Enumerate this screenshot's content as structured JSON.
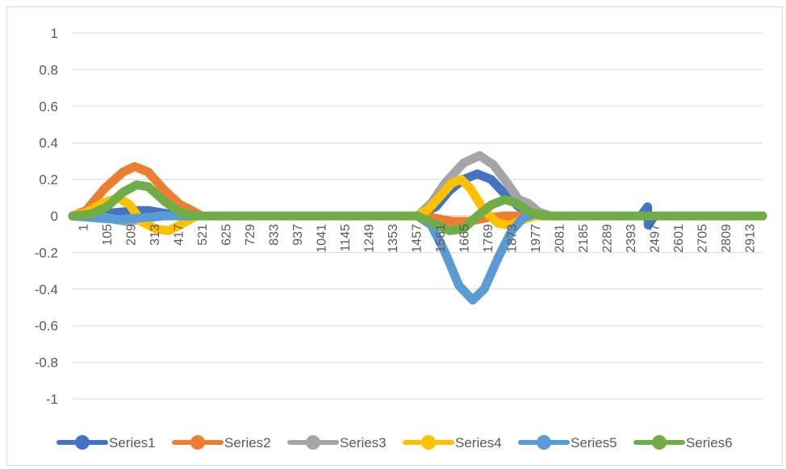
{
  "chart_data": {
    "type": "line",
    "title": "",
    "xlabel": "",
    "ylabel": "",
    "x_range": [
      1,
      3000
    ],
    "ylim": [
      -1,
      1
    ],
    "y_ticks": [
      1,
      0.8,
      0.6,
      0.4,
      0.2,
      0,
      -0.2,
      -0.4,
      -0.6,
      -0.8,
      -1
    ],
    "y_tick_labels": [
      "1",
      "0.8",
      "0.6",
      "0.4",
      "0.2",
      "0",
      "-0.2",
      "-0.4",
      "-0.6",
      "-0.8",
      "-1"
    ],
    "x_tick_labels": [
      "1",
      "105",
      "209",
      "313",
      "417",
      "521",
      "625",
      "729",
      "833",
      "937",
      "1041",
      "1145",
      "1249",
      "1353",
      "1457",
      "1561",
      "1665",
      "1769",
      "1873",
      "1977",
      "2081",
      "2185",
      "2289",
      "2393",
      "2497",
      "2601",
      "2705",
      "2809",
      "2913"
    ],
    "grid": "horizontal",
    "legend_position": "bottom",
    "series": [
      {
        "name": "Series1",
        "color": "#4472C4",
        "points": [
          [
            1,
            0
          ],
          [
            100,
            0.01
          ],
          [
            200,
            0.02
          ],
          [
            280,
            0.03
          ],
          [
            330,
            0.03
          ],
          [
            420,
            0.01
          ],
          [
            500,
            0.0
          ],
          [
            1500,
            0.0
          ],
          [
            1580,
            0.05
          ],
          [
            1640,
            0.14
          ],
          [
            1700,
            0.2
          ],
          [
            1760,
            0.23
          ],
          [
            1820,
            0.2
          ],
          [
            1880,
            0.12
          ],
          [
            1940,
            0.05
          ],
          [
            2000,
            0.02
          ],
          [
            2080,
            0.0
          ],
          [
            2470,
            0.0
          ],
          [
            2500,
            0.05
          ],
          [
            2503,
            -0.05
          ],
          [
            2530,
            0.0
          ],
          [
            3000,
            0.0
          ]
        ]
      },
      {
        "name": "Series2",
        "color": "#ED7D31",
        "points": [
          [
            1,
            0
          ],
          [
            60,
            0.03
          ],
          [
            140,
            0.15
          ],
          [
            220,
            0.24
          ],
          [
            270,
            0.27
          ],
          [
            330,
            0.24
          ],
          [
            400,
            0.14
          ],
          [
            470,
            0.06
          ],
          [
            520,
            0.03
          ],
          [
            560,
            0.0
          ],
          [
            1500,
            0.0
          ],
          [
            1570,
            -0.01
          ],
          [
            1650,
            -0.03
          ],
          [
            1720,
            -0.03
          ],
          [
            1800,
            -0.01
          ],
          [
            1880,
            0.0
          ],
          [
            3000,
            0.0
          ]
        ]
      },
      {
        "name": "Series3",
        "color": "#A5A5A5",
        "points": [
          [
            1,
            0
          ],
          [
            150,
            -0.01
          ],
          [
            230,
            -0.03
          ],
          [
            300,
            -0.02
          ],
          [
            380,
            0.0
          ],
          [
            1500,
            0.0
          ],
          [
            1560,
            0.07
          ],
          [
            1620,
            0.18
          ],
          [
            1700,
            0.29
          ],
          [
            1770,
            0.33
          ],
          [
            1830,
            0.28
          ],
          [
            1890,
            0.18
          ],
          [
            1940,
            0.09
          ],
          [
            1980,
            0.07
          ],
          [
            2030,
            0.02
          ],
          [
            2080,
            0.0
          ],
          [
            3000,
            0.0
          ]
        ]
      },
      {
        "name": "Series4",
        "color": "#FFC000",
        "points": [
          [
            1,
            0
          ],
          [
            60,
            0.02
          ],
          [
            130,
            0.07
          ],
          [
            200,
            0.1
          ],
          [
            250,
            0.06
          ],
          [
            300,
            -0.03
          ],
          [
            360,
            -0.07
          ],
          [
            420,
            -0.08
          ],
          [
            480,
            -0.04
          ],
          [
            540,
            0.0
          ],
          [
            1500,
            0.0
          ],
          [
            1550,
            0.04
          ],
          [
            1600,
            0.11
          ],
          [
            1650,
            0.18
          ],
          [
            1690,
            0.2
          ],
          [
            1730,
            0.15
          ],
          [
            1790,
            0.03
          ],
          [
            1850,
            -0.04
          ],
          [
            1900,
            -0.05
          ],
          [
            1960,
            -0.02
          ],
          [
            2010,
            0.0
          ],
          [
            3000,
            0.0
          ]
        ]
      },
      {
        "name": "Series5",
        "color": "#5B9BD5",
        "points": [
          [
            1,
            0
          ],
          [
            100,
            -0.01
          ],
          [
            200,
            -0.02
          ],
          [
            300,
            -0.01
          ],
          [
            400,
            0.0
          ],
          [
            1500,
            0.0
          ],
          [
            1560,
            -0.05
          ],
          [
            1620,
            -0.2
          ],
          [
            1680,
            -0.38
          ],
          [
            1740,
            -0.46
          ],
          [
            1790,
            -0.4
          ],
          [
            1850,
            -0.23
          ],
          [
            1910,
            -0.08
          ],
          [
            1960,
            -0.01
          ],
          [
            2010,
            0.01
          ],
          [
            2080,
            0.0
          ],
          [
            3000,
            0.0
          ]
        ]
      },
      {
        "name": "Series6",
        "color": "#70AD47",
        "points": [
          [
            1,
            0
          ],
          [
            80,
            0.01
          ],
          [
            150,
            0.05
          ],
          [
            220,
            0.13
          ],
          [
            280,
            0.17
          ],
          [
            330,
            0.16
          ],
          [
            400,
            0.08
          ],
          [
            470,
            0.02
          ],
          [
            540,
            0.0
          ],
          [
            1500,
            0.0
          ],
          [
            1570,
            -0.04
          ],
          [
            1640,
            -0.08
          ],
          [
            1700,
            -0.07
          ],
          [
            1760,
            0.0
          ],
          [
            1820,
            0.06
          ],
          [
            1880,
            0.09
          ],
          [
            1930,
            0.07
          ],
          [
            1990,
            0.02
          ],
          [
            2050,
            0.0
          ],
          [
            3000,
            0.0
          ]
        ]
      }
    ]
  }
}
